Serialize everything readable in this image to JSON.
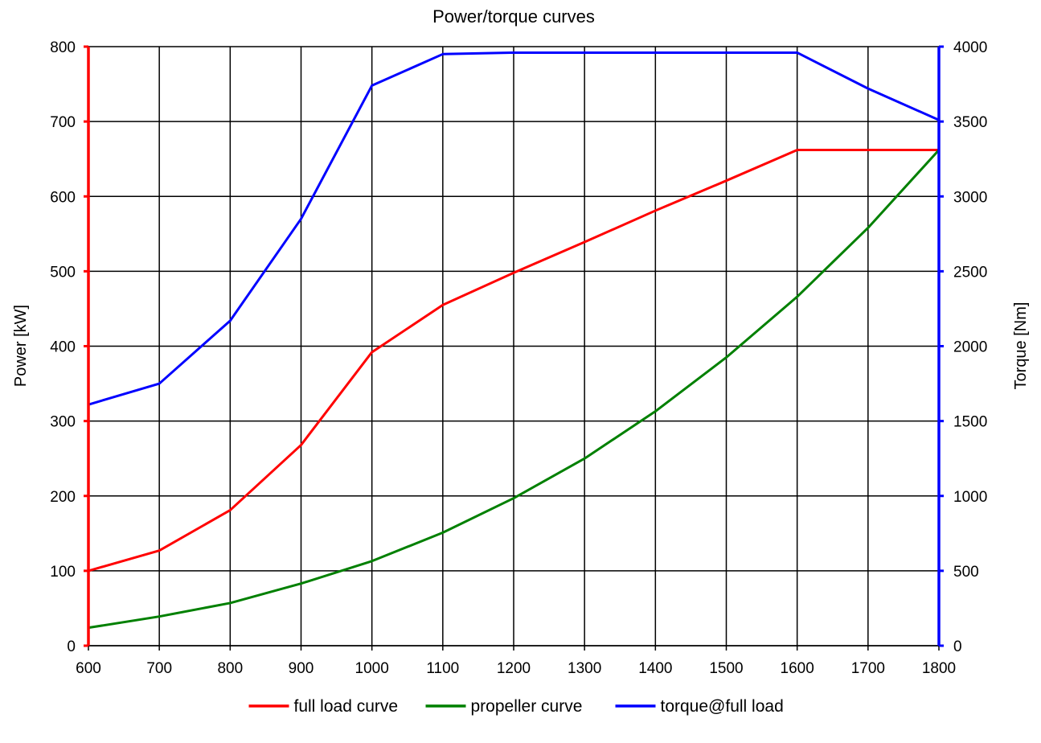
{
  "chart_data": {
    "type": "line",
    "title": "Power/torque curves",
    "xlabel": "",
    "ylabel": "Power [kW]",
    "y2label": "Torque [Nm]",
    "x": [
      600,
      700,
      800,
      900,
      1000,
      1100,
      1200,
      1300,
      1400,
      1500,
      1600,
      1700,
      1800
    ],
    "xlim": [
      600,
      1800
    ],
    "ylim": [
      0,
      800
    ],
    "y2lim": [
      0,
      4000
    ],
    "xticks": [
      "600",
      "700",
      "800",
      "900",
      "1000",
      "1100",
      "1200",
      "1300",
      "1400",
      "1500",
      "1600",
      "1700",
      "1800"
    ],
    "yticks": [
      "0",
      "100",
      "200",
      "300",
      "400",
      "500",
      "600",
      "700",
      "800"
    ],
    "y2ticks": [
      "0",
      "500",
      "1000",
      "1500",
      "2000",
      "2500",
      "3000",
      "3500",
      "4000"
    ],
    "grid": true,
    "legend_position": "bottom",
    "left_axis_color": "#ff0000",
    "right_axis_color": "#0000ff",
    "series": [
      {
        "name": "full load curve",
        "color": "#ff0000",
        "axis": "left",
        "x": [
          600,
          700,
          800,
          900,
          1000,
          1100,
          1200,
          1300,
          1400,
          1500,
          1600,
          1700,
          1800
        ],
        "values": [
          100,
          127,
          181,
          268,
          392,
          455,
          498,
          539,
          581,
          621,
          662,
          662,
          662
        ]
      },
      {
        "name": "propeller curve",
        "color": "#008000",
        "axis": "left",
        "x": [
          600,
          700,
          800,
          900,
          1000,
          1100,
          1200,
          1300,
          1400,
          1500,
          1600,
          1700,
          1800
        ],
        "values": [
          24,
          39,
          57,
          83,
          113,
          151,
          197,
          250,
          313,
          385,
          466,
          558,
          662
        ]
      },
      {
        "name": "torque@full load",
        "color": "#0000ff",
        "axis": "right",
        "x": [
          600,
          700,
          800,
          900,
          1000,
          1100,
          1200,
          1300,
          1400,
          1500,
          1600,
          1700,
          1800
        ],
        "values": [
          1610,
          1750,
          2170,
          2850,
          3740,
          3950,
          3960,
          3960,
          3960,
          3960,
          3960,
          3720,
          3510
        ]
      }
    ]
  }
}
